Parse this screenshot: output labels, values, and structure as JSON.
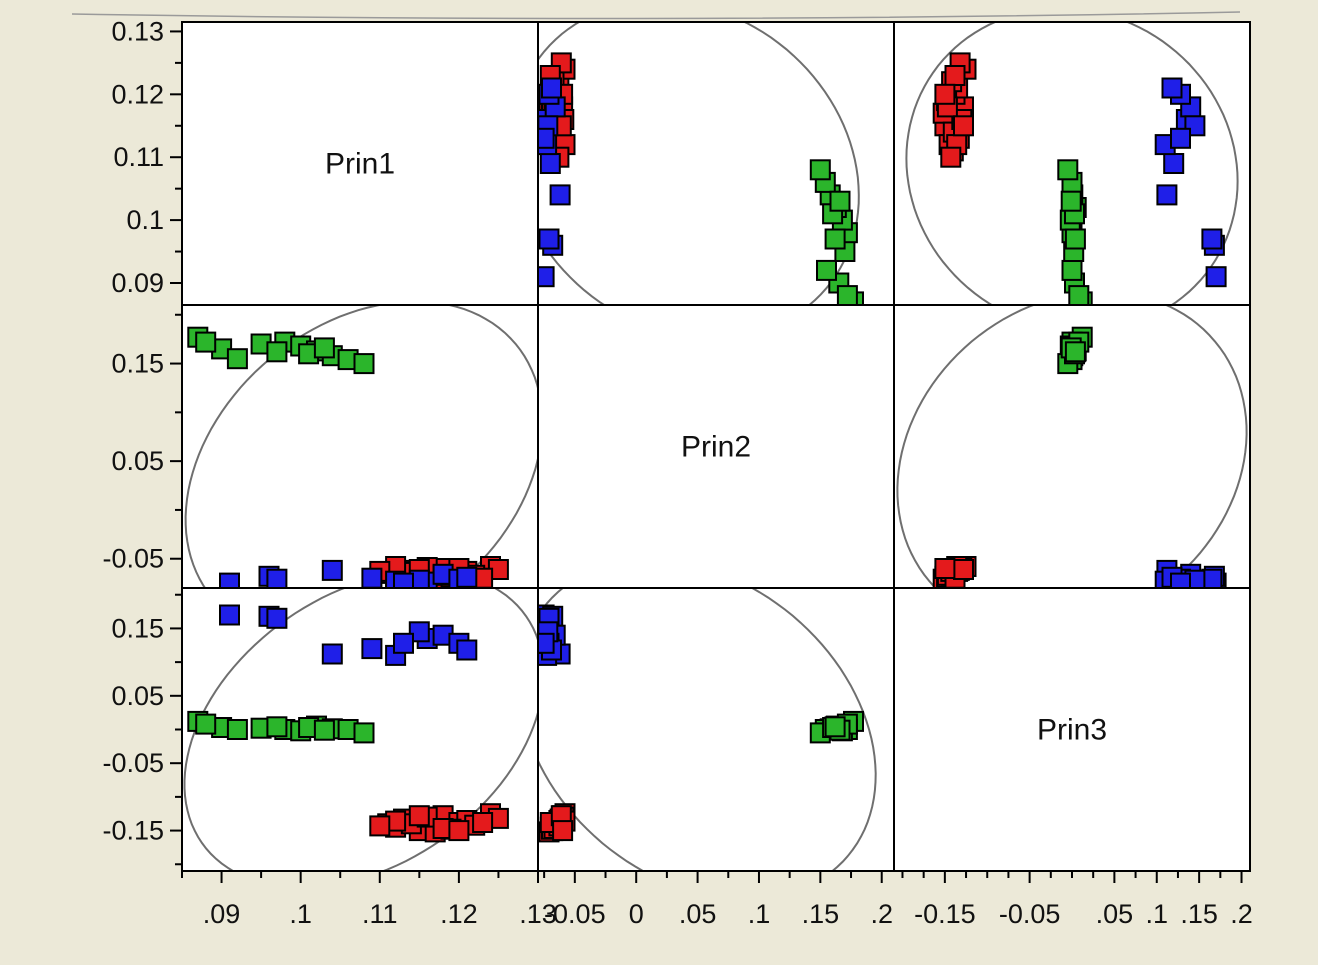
{
  "chart_data": {
    "type": "scatter",
    "variables": [
      "Prin1",
      "Prin2",
      "Prin3"
    ],
    "axes": {
      "Prin1": {
        "range": [
          0.085,
          0.13
        ],
        "y_range": [
          0.0865,
          0.1315
        ],
        "x_ticks": [
          ".09",
          ".1",
          ".11",
          ".12",
          ".13"
        ],
        "y_ticks": [
          "0.09",
          "0.1",
          "0.11",
          "0.12",
          "0.13"
        ]
      },
      "Prin2": {
        "range": [
          -0.08,
          0.21
        ],
        "y_range": [
          -0.08,
          0.21
        ],
        "x_ticks": [
          "-0.05",
          "0",
          ".05",
          ".1",
          ".15",
          ".2"
        ],
        "y_ticks": [
          "-0.05",
          "0.05",
          "0.15"
        ]
      },
      "Prin3": {
        "range": [
          -0.21,
          0.21
        ],
        "y_range": [
          -0.21,
          0.21
        ],
        "x_ticks": [
          "-0.15",
          "-0.05",
          ".05",
          ".1",
          ".15",
          ".2"
        ],
        "y_ticks": [
          "-0.15",
          "-0.05",
          "0.05",
          "0.15"
        ]
      }
    },
    "groups": [
      {
        "color": "#e41a1c",
        "points": [
          [
            0.111,
            -0.065,
            -0.14
          ],
          [
            0.113,
            -0.062,
            -0.133
          ],
          [
            0.115,
            -0.068,
            -0.15
          ],
          [
            0.112,
            -0.07,
            -0.145
          ],
          [
            0.118,
            -0.06,
            -0.128
          ],
          [
            0.12,
            -0.066,
            -0.138
          ],
          [
            0.117,
            -0.071,
            -0.152
          ],
          [
            0.121,
            -0.063,
            -0.135
          ],
          [
            0.124,
            -0.058,
            -0.125
          ],
          [
            0.119,
            -0.069,
            -0.148
          ],
          [
            0.114,
            -0.064,
            -0.14
          ],
          [
            0.116,
            -0.059,
            -0.13
          ],
          [
            0.122,
            -0.067,
            -0.142
          ],
          [
            0.125,
            -0.061,
            -0.132
          ],
          [
            0.112,
            -0.058,
            -0.136
          ],
          [
            0.118,
            -0.067,
            -0.147
          ],
          [
            0.11,
            -0.063,
            -0.143
          ],
          [
            0.123,
            -0.07,
            -0.138
          ],
          [
            0.115,
            -0.061,
            -0.128
          ],
          [
            0.12,
            -0.06,
            -0.15
          ]
        ]
      },
      {
        "color": "#1f1fe8",
        "points": [
          [
            0.091,
            -0.075,
            0.17
          ],
          [
            0.096,
            -0.068,
            0.168
          ],
          [
            0.097,
            -0.071,
            0.165
          ],
          [
            0.104,
            -0.062,
            0.112
          ],
          [
            0.109,
            -0.07,
            0.12
          ],
          [
            0.112,
            -0.073,
            0.11
          ],
          [
            0.116,
            -0.074,
            0.135
          ],
          [
            0.118,
            -0.066,
            0.14
          ],
          [
            0.12,
            -0.071,
            0.128
          ],
          [
            0.121,
            -0.069,
            0.118
          ],
          [
            0.115,
            -0.072,
            0.145
          ],
          [
            0.113,
            -0.075,
            0.128
          ]
        ]
      },
      {
        "color": "#2bb52b",
        "points": [
          [
            0.087,
            0.177,
            0.012
          ],
          [
            0.09,
            0.165,
            0.003
          ],
          [
            0.092,
            0.155,
            0.0
          ],
          [
            0.095,
            0.17,
            0.002
          ],
          [
            0.098,
            0.172,
            0.0
          ],
          [
            0.1,
            0.168,
            -0.002
          ],
          [
            0.102,
            0.163,
            0.005
          ],
          [
            0.104,
            0.158,
            0.001
          ],
          [
            0.106,
            0.154,
            0.0
          ],
          [
            0.108,
            0.15,
            -0.005
          ],
          [
            0.088,
            0.172,
            0.008
          ],
          [
            0.101,
            0.16,
            0.003
          ],
          [
            0.103,
            0.166,
            -0.001
          ],
          [
            0.097,
            0.162,
            0.004
          ]
        ]
      }
    ],
    "ellipses": {
      "Prin1_Prin2": [
        0.108,
        0.04,
        0.025,
        0.15,
        -40
      ],
      "Prin1_Prin3": [
        0.108,
        0.0,
        0.025,
        0.2,
        -35
      ],
      "Prin2_Prin3": [
        0.05,
        0.0,
        0.16,
        0.22,
        40
      ]
    }
  }
}
